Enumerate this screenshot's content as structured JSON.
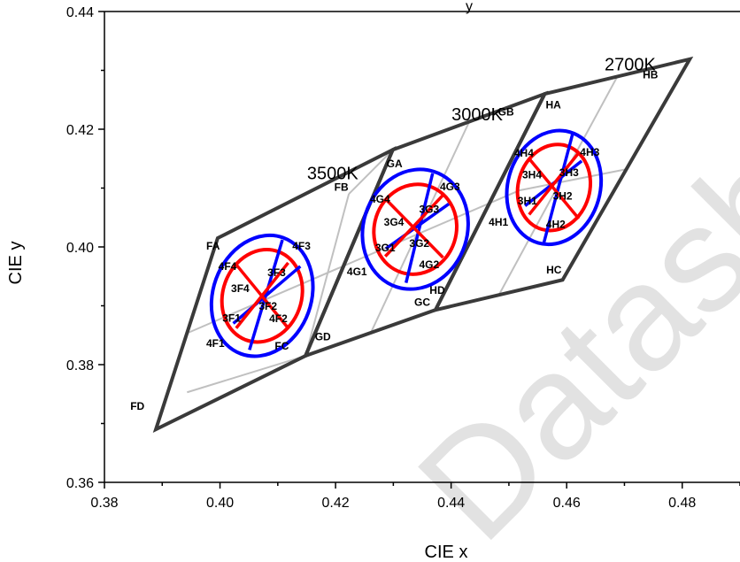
{
  "chart_data": {
    "type": "scatter",
    "xlabel": "CIE x",
    "ylabel": "CIE y",
    "title_fragment": "y",
    "xlim": [
      0.38,
      0.49
    ],
    "ylim": [
      0.36,
      0.44
    ],
    "xticks": [
      "0.38",
      "0.40",
      "0.42",
      "0.44",
      "0.46",
      "0.48"
    ],
    "yticks": [
      "0.36",
      "0.38",
      "0.40",
      "0.42",
      "0.44"
    ],
    "watermark": "Datashee",
    "colors": {
      "outline": "#3a3a3a",
      "grid": "#c0c0c0",
      "outer_ellipse": "#0000ff",
      "inner_ellipse": "#ff0000",
      "watermark": "#e2e2e2"
    },
    "cct_labels": [
      {
        "text": "3500K",
        "x": 0.4195,
        "y": 0.4115
      },
      {
        "text": "3000K",
        "x": 0.4445,
        "y": 0.4215
      },
      {
        "text": "2700K",
        "x": 0.471,
        "y": 0.43
      }
    ],
    "quadrangles": [
      {
        "name": "3500K",
        "corners": [
          [
            0.3996,
            0.4015
          ],
          [
            0.4299,
            0.4165
          ],
          [
            0.4148,
            0.3815
          ],
          [
            0.3889,
            0.369
          ]
        ]
      },
      {
        "name": "3000K",
        "corners": [
          [
            0.4299,
            0.4165
          ],
          [
            0.4562,
            0.426
          ],
          [
            0.4373,
            0.3893
          ],
          [
            0.4148,
            0.3815
          ]
        ]
      },
      {
        "name": "2700K",
        "corners": [
          [
            0.4562,
            0.426
          ],
          [
            0.4813,
            0.4319
          ],
          [
            0.4593,
            0.3944
          ],
          [
            0.4373,
            0.3893
          ]
        ]
      }
    ],
    "grid_lines": [
      [
        [
          0.3942,
          0.3853
        ],
        [
          0.4518,
          0.4096
        ]
      ],
      [
        [
          0.4518,
          0.4096
        ],
        [
          0.4703,
          0.4132
        ]
      ],
      [
        [
          0.3943,
          0.3753
        ],
        [
          0.4148,
          0.3815
        ]
      ],
      [
        [
          0.4148,
          0.3815
        ],
        [
          0.4223,
          0.409
        ]
      ],
      [
        [
          0.4261,
          0.3854
        ],
        [
          0.4431,
          0.4212
        ]
      ],
      [
        [
          0.4483,
          0.3919
        ],
        [
          0.4688,
          0.429
        ]
      ],
      [
        [
          0.4223,
          0.409
        ],
        [
          0.4299,
          0.4165
        ]
      ],
      [
        [
          0.3996,
          0.4015
        ],
        [
          0.4148,
          0.409
        ]
      ]
    ],
    "ellipses": [
      {
        "center": [
          0.4073,
          0.3917
        ],
        "rx": 0.0085,
        "ry": 0.0105,
        "angle_deg": -20,
        "color": "outer"
      },
      {
        "center": [
          0.4073,
          0.3917
        ],
        "rx": 0.0068,
        "ry": 0.008,
        "angle_deg": -20,
        "color": "inner"
      },
      {
        "center": [
          0.4338,
          0.403
        ],
        "rx": 0.009,
        "ry": 0.0103,
        "angle_deg": -18,
        "color": "outer"
      },
      {
        "center": [
          0.4338,
          0.403
        ],
        "rx": 0.0071,
        "ry": 0.0077,
        "angle_deg": -18,
        "color": "inner"
      },
      {
        "center": [
          0.4578,
          0.4101
        ],
        "rx": 0.008,
        "ry": 0.0098,
        "angle_deg": -16,
        "color": "outer"
      },
      {
        "center": [
          0.4578,
          0.4101
        ],
        "rx": 0.0062,
        "ry": 0.0074,
        "angle_deg": -16,
        "color": "inner"
      }
    ],
    "cross_lines": [
      {
        "color": "outer",
        "from": [
          0.4023,
          0.387
        ],
        "to": [
          0.4139,
          0.3967
        ]
      },
      {
        "color": "outer",
        "from": [
          0.4051,
          0.3825
        ],
        "to": [
          0.4108,
          0.4012
        ]
      },
      {
        "color": "outer",
        "from": [
          0.4287,
          0.3997
        ],
        "to": [
          0.4396,
          0.4073
        ]
      },
      {
        "color": "outer",
        "from": [
          0.4322,
          0.3939
        ],
        "to": [
          0.4368,
          0.4125
        ]
      },
      {
        "color": "outer",
        "from": [
          0.4528,
          0.407
        ],
        "to": [
          0.4626,
          0.4146
        ]
      },
      {
        "color": "outer",
        "from": [
          0.456,
          0.4005
        ],
        "to": [
          0.461,
          0.4191
        ]
      },
      {
        "color": "inner",
        "from": [
          0.4028,
          0.3862
        ],
        "to": [
          0.4118,
          0.3973
        ]
      },
      {
        "color": "inner",
        "from": [
          0.4028,
          0.397
        ],
        "to": [
          0.4118,
          0.3862
        ]
      },
      {
        "color": "inner",
        "from": [
          0.4286,
          0.3984
        ],
        "to": [
          0.4386,
          0.4088
        ]
      },
      {
        "color": "inner",
        "from": [
          0.4286,
          0.4082
        ],
        "to": [
          0.4386,
          0.3982
        ]
      },
      {
        "color": "inner",
        "from": [
          0.4535,
          0.4055
        ],
        "to": [
          0.4621,
          0.416
        ]
      },
      {
        "color": "inner",
        "from": [
          0.4535,
          0.415
        ],
        "to": [
          0.4621,
          0.4048
        ]
      }
    ],
    "bin_labels": [
      {
        "text": "FA",
        "x": 0.3988,
        "y": 0.4
      },
      {
        "text": "FB",
        "x": 0.421,
        "y": 0.41
      },
      {
        "text": "FC",
        "x": 0.4107,
        "y": 0.383
      },
      {
        "text": "FD",
        "x": 0.3857,
        "y": 0.3728
      },
      {
        "text": "GA",
        "x": 0.4302,
        "y": 0.414
      },
      {
        "text": "GB",
        "x": 0.4495,
        "y": 0.4228
      },
      {
        "text": "GC",
        "x": 0.435,
        "y": 0.3905
      },
      {
        "text": "GD",
        "x": 0.4178,
        "y": 0.3846
      },
      {
        "text": "HA",
        "x": 0.4577,
        "y": 0.424
      },
      {
        "text": "HB",
        "x": 0.4745,
        "y": 0.4291
      },
      {
        "text": "HC",
        "x": 0.4578,
        "y": 0.396
      },
      {
        "text": "HD",
        "x": 0.4376,
        "y": 0.3925
      },
      {
        "text": "4F1",
        "x": 0.3992,
        "y": 0.3835
      },
      {
        "text": "4F2",
        "x": 0.4101,
        "y": 0.3877
      },
      {
        "text": "4F3",
        "x": 0.4141,
        "y": 0.4
      },
      {
        "text": "4F4",
        "x": 0.4013,
        "y": 0.3966
      },
      {
        "text": "3F1",
        "x": 0.402,
        "y": 0.3878
      },
      {
        "text": "3F2",
        "x": 0.4083,
        "y": 0.3898
      },
      {
        "text": "3F3",
        "x": 0.4098,
        "y": 0.3955
      },
      {
        "text": "3F4",
        "x": 0.4035,
        "y": 0.3928
      },
      {
        "text": "4G1",
        "x": 0.4237,
        "y": 0.3957
      },
      {
        "text": "4G2",
        "x": 0.4362,
        "y": 0.3969
      },
      {
        "text": "4G3",
        "x": 0.4398,
        "y": 0.4101
      },
      {
        "text": "4G4",
        "x": 0.4277,
        "y": 0.408
      },
      {
        "text": "3G1",
        "x": 0.4286,
        "y": 0.3997
      },
      {
        "text": "3G2",
        "x": 0.4345,
        "y": 0.4005
      },
      {
        "text": "3G3",
        "x": 0.4362,
        "y": 0.4063
      },
      {
        "text": "3G4",
        "x": 0.4301,
        "y": 0.4041
      },
      {
        "text": "4H1",
        "x": 0.4482,
        "y": 0.4041
      },
      {
        "text": "4H2",
        "x": 0.4581,
        "y": 0.4037
      },
      {
        "text": "4H3",
        "x": 0.464,
        "y": 0.416
      },
      {
        "text": "4H4",
        "x": 0.4526,
        "y": 0.4158
      },
      {
        "text": "3H1",
        "x": 0.4532,
        "y": 0.4077
      },
      {
        "text": "3H2",
        "x": 0.4593,
        "y": 0.4085
      },
      {
        "text": "3H3",
        "x": 0.4604,
        "y": 0.4125
      },
      {
        "text": "3H4",
        "x": 0.454,
        "y": 0.4121
      }
    ]
  }
}
